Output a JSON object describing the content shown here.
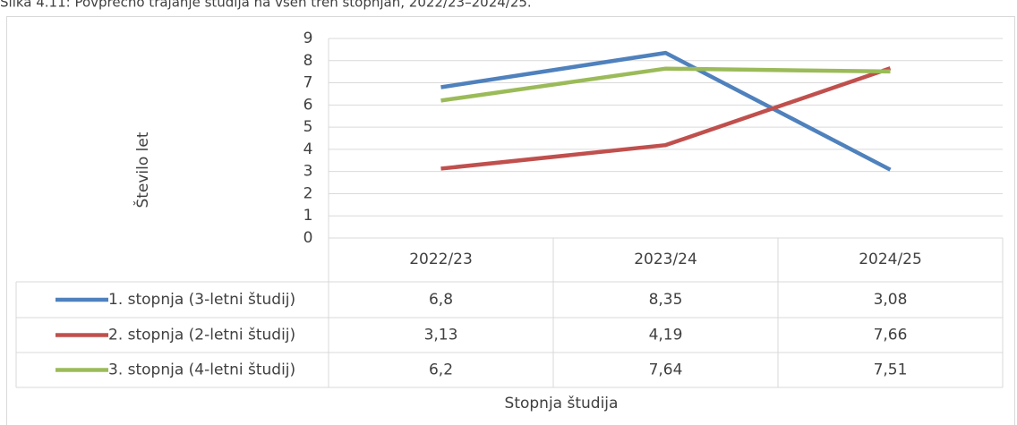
{
  "chart_data": {
    "type": "line",
    "title": "Slika 4.11: Povprečno trajanje študija na vseh treh stopnjah, 2022/23–2024/25.",
    "y_label": "Število let",
    "x_label": "Stopnja študija",
    "categories": [
      "2022/23",
      "2023/24",
      "2024/25"
    ],
    "series": [
      {
        "name": "1. stopnja (3-letni študij)",
        "color": "#4f81bd",
        "values": [
          6.8,
          8.35,
          3.08
        ],
        "value_labels": [
          "6,8",
          "8,35",
          "3,08"
        ]
      },
      {
        "name": "2. stopnja (2-letni študij)",
        "color": "#c0504d",
        "values": [
          3.13,
          4.19,
          7.66
        ],
        "value_labels": [
          "3,13",
          "4,19",
          "7,66"
        ]
      },
      {
        "name": "3. stopnja (4-letni študij)",
        "color": "#9bbb59",
        "values": [
          6.2,
          7.64,
          7.51
        ],
        "value_labels": [
          "6,2",
          "7,64",
          "7,51"
        ]
      }
    ],
    "ylim": [
      0,
      9
    ],
    "yticks": [
      0,
      1,
      2,
      3,
      4,
      5,
      6,
      7,
      8,
      9
    ],
    "grid": true
  }
}
